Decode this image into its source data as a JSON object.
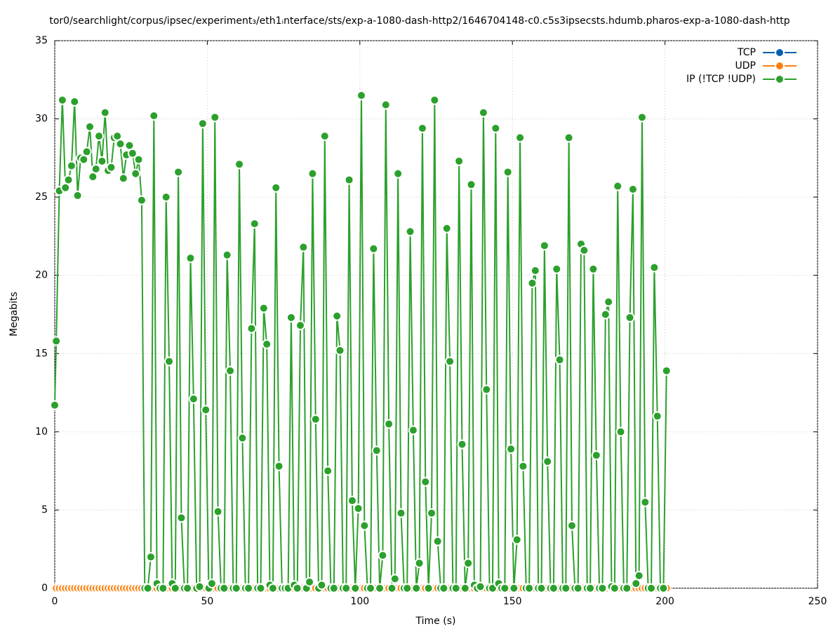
{
  "chart_data": {
    "type": "line",
    "title": "tor0/searchlight/corpus/ipsec/experiment₃/eth1ᵢnterface/sts/exp-a-1080-dash-http2/1646704148-c0.c5s3ipsecsts.hdumb.pharos-exp-a-1080-dash-http",
    "x_label": "Time (s)",
    "y_label": "Megabits",
    "xlim": [
      0,
      250
    ],
    "xticks": [
      0,
      50,
      100,
      150,
      200,
      250
    ],
    "ylim": [
      0,
      35
    ],
    "yticks": [
      0,
      5,
      10,
      15,
      20,
      25,
      30,
      35
    ],
    "grid": true,
    "legend": "top-right",
    "x": [
      0,
      0.5,
      1.5,
      2.5,
      3.5,
      4.5,
      5.5,
      6.5,
      7.5,
      8.5,
      9.5,
      10.5,
      11.5,
      12.5,
      13.5,
      14.5,
      15.5,
      16.5,
      17.5,
      18.5,
      19.5,
      20.5,
      21.5,
      22.5,
      23.5,
      24.5,
      25.5,
      26.5,
      27.5,
      28.5,
      29.5,
      30.5,
      31.5,
      32.5,
      33.5,
      34.5,
      35.5,
      36.5,
      37.5,
      38.5,
      39.5,
      40.5,
      41.5,
      42.5,
      43.5,
      44.5,
      45.5,
      46.5,
      47.5,
      48.5,
      49.5,
      50.5,
      51.5,
      52.5,
      53.5,
      54.5,
      55.5,
      56.5,
      57.5,
      58.5,
      59.5,
      60.5,
      61.5,
      62.5,
      63.5,
      64.5,
      65.5,
      66.5,
      67.5,
      68.5,
      69.5,
      70.5,
      71.5,
      72.5,
      73.5,
      74.5,
      75.5,
      76.5,
      77.5,
      78.5,
      79.5,
      80.5,
      81.5,
      82.5,
      83.5,
      84.5,
      85.5,
      86.5,
      87.5,
      88.5,
      89.5,
      90.5,
      91.5,
      92.5,
      93.5,
      94.5,
      95.5,
      96.5,
      97.5,
      98.5,
      99.5,
      100.5,
      101.5,
      102.5,
      103.5,
      104.5,
      105.5,
      106.5,
      107.5,
      108.5,
      109.5,
      110.5,
      111.5,
      112.5,
      113.5,
      114.5,
      115.5,
      116.5,
      117.5,
      118.5,
      119.5,
      120.5,
      121.5,
      122.5,
      123.5,
      124.5,
      125.5,
      126.5,
      127.5,
      128.5,
      129.5,
      130.5,
      131.5,
      132.5,
      133.5,
      134.5,
      135.5,
      136.5,
      137.5,
      138.5,
      139.5,
      140.5,
      141.5,
      142.5,
      143.5,
      144.5,
      145.5,
      146.5,
      147.5,
      148.5,
      149.5,
      150.5,
      151.5,
      152.5,
      153.5,
      154.5,
      155.5,
      156.5,
      157.5,
      158.5,
      159.5,
      160.5,
      161.5,
      162.5,
      163.5,
      164.5,
      165.5,
      166.5,
      167.5,
      168.5,
      169.5,
      170.5,
      171.5,
      172.5,
      173.5,
      174.5,
      175.5,
      176.5,
      177.5,
      178.5,
      179.5,
      180.5,
      181.5,
      182.5,
      183.5,
      184.5,
      185.5,
      186.5,
      187.5,
      188.5,
      189.5,
      190.5,
      191.5,
      192.5,
      193.5,
      194.5,
      195.5,
      196.5,
      197.5,
      198.5,
      199.5,
      200.5
    ],
    "series": [
      {
        "name": "TCP",
        "color": "#0060ad",
        "values": [
          0,
          0,
          0,
          0,
          0,
          0,
          0,
          0,
          0,
          0,
          0,
          0,
          0,
          0,
          0,
          0,
          0,
          0,
          0,
          0,
          0,
          0,
          0,
          0,
          0,
          0,
          0,
          0,
          0,
          0,
          0,
          0,
          0,
          0,
          0,
          0,
          0,
          0,
          0,
          0,
          0,
          0,
          0,
          0,
          0,
          0,
          0,
          0,
          0,
          0,
          0,
          0,
          0,
          0,
          0,
          0,
          0,
          0,
          0,
          0,
          0,
          0,
          0,
          0,
          0,
          0,
          0,
          0,
          0,
          0,
          0,
          0,
          0,
          0,
          0,
          0,
          0,
          0,
          0,
          0,
          0,
          0,
          0,
          0,
          0,
          0,
          0,
          0,
          0,
          0,
          0,
          0,
          0,
          0,
          0,
          0,
          0,
          0,
          0,
          0,
          0,
          0,
          0,
          0,
          0,
          0,
          0,
          0,
          0,
          0,
          0,
          0,
          0,
          0,
          0,
          0,
          0,
          0,
          0,
          0,
          0,
          0,
          0,
          0,
          0,
          0,
          0,
          0,
          0,
          0,
          0,
          0,
          0,
          0,
          0,
          0,
          0,
          0,
          0,
          0,
          0,
          0,
          0,
          0,
          0,
          0,
          0,
          0,
          0,
          0,
          0,
          0,
          0,
          0,
          0,
          0,
          0,
          0,
          0,
          0,
          0,
          0,
          0,
          0,
          0,
          0,
          0,
          0,
          0,
          0,
          0,
          0,
          0,
          0,
          0,
          0,
          0,
          0,
          0,
          0,
          0,
          0,
          0,
          0,
          0,
          0,
          0,
          0,
          0,
          0,
          0,
          0,
          0,
          0,
          0,
          0,
          0,
          0,
          0,
          0,
          0,
          0
        ]
      },
      {
        "name": "UDP",
        "color": "#ff7f0e",
        "values": [
          0,
          0,
          0,
          0,
          0,
          0,
          0,
          0,
          0,
          0,
          0,
          0,
          0,
          0,
          0,
          0,
          0,
          0,
          0,
          0,
          0,
          0,
          0,
          0,
          0,
          0,
          0,
          0,
          0,
          0,
          0,
          0,
          0,
          0,
          0,
          0,
          0,
          0,
          0,
          0,
          0,
          0,
          0,
          0,
          0,
          0,
          0,
          0,
          0,
          0,
          0,
          0,
          0,
          0,
          0,
          0,
          0,
          0,
          0,
          0,
          0,
          0,
          0,
          0,
          0,
          0,
          0,
          0,
          0,
          0,
          0,
          0,
          0,
          0,
          0,
          0,
          0,
          0,
          0,
          0,
          0,
          0,
          0,
          0,
          0,
          0,
          0,
          0,
          0,
          0,
          0,
          0,
          0,
          0,
          0,
          0,
          0,
          0,
          0,
          0,
          0,
          0,
          0,
          0,
          0,
          0,
          0,
          0,
          0,
          0,
          0,
          0,
          0,
          0,
          0,
          0,
          0,
          0,
          0,
          0,
          0,
          0,
          0,
          0,
          0,
          0,
          0,
          0,
          0,
          0,
          0,
          0,
          0,
          0,
          0,
          0,
          0,
          0,
          0,
          0,
          0,
          0,
          0,
          0,
          0,
          0,
          0,
          0,
          0,
          0,
          0,
          0,
          0,
          0,
          0,
          0,
          0,
          0,
          0,
          0,
          0,
          0,
          0,
          0,
          0,
          0,
          0,
          0,
          0,
          0,
          0,
          0,
          0,
          0,
          0,
          0,
          0,
          0,
          0,
          0,
          0,
          0,
          0,
          0,
          0,
          0,
          0,
          0,
          0,
          0,
          0,
          0,
          0,
          0,
          0,
          0,
          0,
          0,
          0,
          0,
          0,
          0
        ]
      },
      {
        "name": "IP (!TCP  !UDP)",
        "color": "#2ca02c",
        "values": [
          11.7,
          15.8,
          25.4,
          31.2,
          25.6,
          26.1,
          27.0,
          31.1,
          25.1,
          27.5,
          27.4,
          27.9,
          29.5,
          26.3,
          26.8,
          28.9,
          27.3,
          30.4,
          26.7,
          26.9,
          28.8,
          28.9,
          28.4,
          26.2,
          27.7,
          28.3,
          27.8,
          26.5,
          27.4,
          24.8,
          0,
          0,
          2.0,
          30.2,
          0.3,
          0,
          0,
          25.0,
          14.5,
          0.3,
          0,
          26.6,
          4.5,
          0,
          0,
          21.1,
          12.1,
          0,
          0.1,
          29.7,
          11.4,
          0,
          0.3,
          30.1,
          4.9,
          0,
          0,
          21.3,
          13.9,
          0,
          0,
          27.1,
          9.6,
          0,
          0,
          16.6,
          23.3,
          0,
          0,
          17.9,
          15.6,
          0.2,
          0,
          25.6,
          7.8,
          0,
          0,
          0,
          17.3,
          0.2,
          0,
          16.8,
          21.8,
          0,
          0.4,
          26.5,
          10.8,
          0,
          0.2,
          28.9,
          7.5,
          0,
          0,
          17.4,
          15.2,
          0,
          0,
          26.1,
          5.6,
          0,
          5.1,
          31.5,
          4.0,
          0,
          0,
          21.7,
          8.8,
          0,
          2.1,
          30.9,
          10.5,
          0,
          0.6,
          26.5,
          4.8,
          0,
          0,
          22.8,
          10.1,
          0,
          1.6,
          29.4,
          6.8,
          0,
          4.8,
          31.2,
          3.0,
          0,
          0,
          23.0,
          14.5,
          0,
          0,
          27.3,
          9.2,
          0,
          1.6,
          25.8,
          0.2,
          0,
          0.1,
          30.4,
          12.7,
          0,
          0,
          29.4,
          0.3,
          0,
          0,
          26.6,
          8.9,
          0,
          3.1,
          28.8,
          7.8,
          0,
          0,
          19.5,
          20.3,
          0,
          0,
          21.9,
          8.1,
          0,
          0,
          20.4,
          14.6,
          0,
          0,
          28.8,
          4.0,
          0,
          0,
          22.0,
          21.6,
          0,
          0,
          20.4,
          8.5,
          0,
          0,
          17.5,
          18.3,
          0.1,
          0,
          25.7,
          10.0,
          0,
          0,
          17.3,
          25.5,
          0.3,
          0.8,
          30.1,
          5.5,
          0,
          0,
          20.5,
          11.0,
          0,
          0,
          13.9
        ]
      }
    ]
  }
}
